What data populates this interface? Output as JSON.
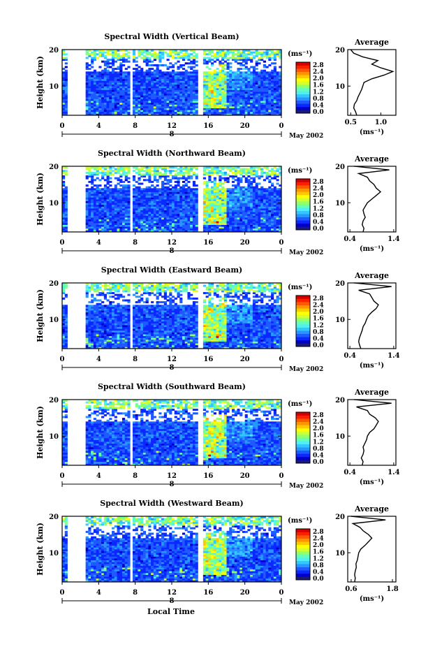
{
  "x_axis_label": "Local Time",
  "date_label": "May 2002",
  "day_marker": "8",
  "colorbar": {
    "unit": "(ms⁻¹)",
    "ticks": [
      "2.8",
      "2.4",
      "2.0",
      "1.6",
      "1.2",
      "0.8",
      "0.4",
      "0.0"
    ],
    "colors": [
      "#1a1a78",
      "#0000c8",
      "#0a28ff",
      "#1e5aff",
      "#2896ff",
      "#32c8ff",
      "#50f0f0",
      "#64ffb4",
      "#96ff64",
      "#d2ff32",
      "#ffff00",
      "#ffc800",
      "#ff9600",
      "#ff5a00",
      "#ff1e00",
      "#d20000"
    ]
  },
  "chart_data": [
    {
      "type": "heatmap",
      "title": "Spectral Width (Vertical Beam)",
      "ylabel": "Height (km)",
      "x_ticks": [
        "0",
        "4",
        "8",
        "12",
        "16",
        "20",
        "0"
      ],
      "y_ticks": [
        "20",
        "10"
      ],
      "xlim": [
        0,
        24
      ],
      "ylim": [
        2,
        20
      ],
      "data_gaps_hours": [
        [
          0.7,
          2.7
        ],
        [
          7.3,
          7.6
        ],
        [
          15.0,
          15.3
        ]
      ],
      "profile": {
        "title": "Average",
        "xlabel": "(ms⁻¹)",
        "x_ticks": [
          "0.5",
          "1.0"
        ],
        "xlim": [
          0.45,
          1.25
        ],
        "y_ticks": [
          "20",
          "10"
        ],
        "height_km": [
          2,
          3,
          4,
          5,
          6,
          7,
          8,
          9,
          10,
          11,
          12,
          13,
          14,
          15,
          16,
          17,
          18,
          19,
          20
        ],
        "width_ms": [
          0.6,
          0.58,
          0.55,
          0.56,
          0.6,
          0.62,
          0.65,
          0.68,
          0.7,
          0.72,
          0.85,
          1.05,
          1.2,
          1.0,
          0.85,
          0.95,
          0.7,
          0.55,
          0.5
        ]
      }
    },
    {
      "type": "heatmap",
      "title": "Spectral Width (Northward Beam)",
      "ylabel": "Height (km)",
      "x_ticks": [
        "0",
        "4",
        "8",
        "12",
        "16",
        "20",
        "0"
      ],
      "y_ticks": [
        "20",
        "10"
      ],
      "xlim": [
        0,
        24
      ],
      "ylim": [
        2,
        20
      ],
      "data_gaps_hours": [
        [
          0.7,
          2.7
        ],
        [
          7.3,
          7.6
        ],
        [
          15.0,
          15.3
        ]
      ],
      "profile": {
        "title": "Average",
        "xlabel": "(ms⁻¹)",
        "x_ticks": [
          "0.4",
          "1.4"
        ],
        "xlim": [
          0.35,
          1.45
        ],
        "y_ticks": [
          "20",
          "10"
        ],
        "height_km": [
          2,
          3,
          4,
          5,
          6,
          7,
          8,
          9,
          10,
          11,
          12,
          13,
          14,
          15,
          16,
          17,
          18,
          19,
          20
        ],
        "width_ms": [
          0.7,
          0.72,
          0.68,
          0.7,
          0.75,
          0.72,
          0.7,
          0.75,
          0.8,
          0.9,
          1.0,
          1.1,
          1.0,
          0.95,
          0.85,
          0.8,
          0.6,
          1.3,
          0.5
        ]
      }
    },
    {
      "type": "heatmap",
      "title": "Spectral Width (Eastward Beam)",
      "ylabel": "Height (km)",
      "x_ticks": [
        "0",
        "4",
        "8",
        "12",
        "16",
        "20",
        "0"
      ],
      "y_ticks": [
        "20",
        "10"
      ],
      "xlim": [
        0,
        24
      ],
      "ylim": [
        2,
        20
      ],
      "data_gaps_hours": [
        [
          0.7,
          2.7
        ],
        [
          7.3,
          7.6
        ],
        [
          15.0,
          15.3
        ]
      ],
      "profile": {
        "title": "Average",
        "xlabel": "(ms⁻¹)",
        "x_ticks": [
          "0.4",
          "1.4"
        ],
        "xlim": [
          0.35,
          1.45
        ],
        "y_ticks": [
          "20",
          "10"
        ],
        "height_km": [
          2,
          3,
          4,
          5,
          6,
          7,
          8,
          9,
          10,
          11,
          12,
          13,
          14,
          15,
          16,
          17,
          18,
          19,
          20
        ],
        "width_ms": [
          0.65,
          0.62,
          0.6,
          0.62,
          0.65,
          0.68,
          0.7,
          0.75,
          0.78,
          0.82,
          0.9,
          1.0,
          1.05,
          0.95,
          0.9,
          0.85,
          0.6,
          1.35,
          0.5
        ]
      }
    },
    {
      "type": "heatmap",
      "title": "Spectral Width (Southward Beam)",
      "ylabel": "Height (km)",
      "x_ticks": [
        "0",
        "4",
        "8",
        "12",
        "16",
        "20",
        "0"
      ],
      "y_ticks": [
        "20",
        "10"
      ],
      "xlim": [
        0,
        24
      ],
      "ylim": [
        2,
        20
      ],
      "data_gaps_hours": [
        [
          0.7,
          2.7
        ],
        [
          7.3,
          7.6
        ],
        [
          15.0,
          15.3
        ]
      ],
      "profile": {
        "title": "Average",
        "xlabel": "(ms⁻¹)",
        "x_ticks": [
          "0.4",
          "1.4"
        ],
        "xlim": [
          0.35,
          1.45
        ],
        "y_ticks": [
          "20",
          "10"
        ],
        "height_km": [
          2,
          3,
          4,
          5,
          6,
          7,
          8,
          9,
          10,
          11,
          12,
          13,
          14,
          15,
          16,
          17,
          18,
          19,
          20
        ],
        "width_ms": [
          0.68,
          0.7,
          0.66,
          0.7,
          0.72,
          0.7,
          0.74,
          0.78,
          0.8,
          0.85,
          0.95,
          1.0,
          1.05,
          0.98,
          0.85,
          0.8,
          0.55,
          1.35,
          0.5
        ]
      }
    },
    {
      "type": "heatmap",
      "title": "Spectral Width (Westward Beam)",
      "ylabel": "Height (km)",
      "x_ticks": [
        "0",
        "4",
        "8",
        "12",
        "16",
        "20",
        "0"
      ],
      "y_ticks": [
        "20",
        "10"
      ],
      "xlim": [
        0,
        24
      ],
      "ylim": [
        2,
        20
      ],
      "data_gaps_hours": [
        [
          0.7,
          2.7
        ],
        [
          7.3,
          7.6
        ],
        [
          15.0,
          15.3
        ]
      ],
      "profile": {
        "title": "Average",
        "xlabel": "(ms⁻¹)",
        "x_ticks": [
          "0.6",
          "1.8"
        ],
        "xlim": [
          0.5,
          1.9
        ],
        "y_ticks": [
          "20",
          "10"
        ],
        "height_km": [
          2,
          3,
          4,
          5,
          6,
          7,
          8,
          9,
          10,
          11,
          12,
          13,
          14,
          15,
          16,
          17,
          18,
          19,
          20
        ],
        "width_ms": [
          0.7,
          0.72,
          0.7,
          0.72,
          0.75,
          0.74,
          0.78,
          0.8,
          0.82,
          0.88,
          1.0,
          1.1,
          1.2,
          1.1,
          0.95,
          0.85,
          0.65,
          1.6,
          0.6
        ]
      }
    }
  ]
}
